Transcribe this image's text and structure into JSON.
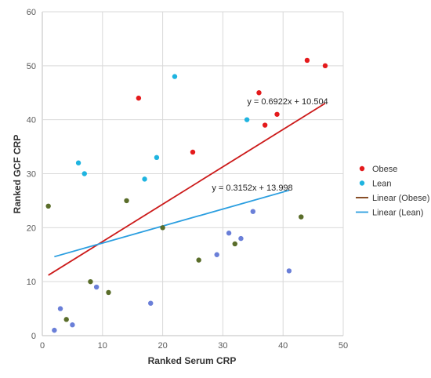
{
  "chart_data": {
    "type": "scatter",
    "title": "",
    "xlabel": "Ranked Serum CRP",
    "ylabel": "Ranked GCF CRP",
    "xlim": [
      0,
      50
    ],
    "ylim": [
      0,
      60
    ],
    "x_ticks": [
      "0",
      "10",
      "20",
      "30",
      "40",
      "50"
    ],
    "y_ticks": [
      "0",
      "10",
      "20",
      "30",
      "40",
      "50",
      "60"
    ],
    "grid": true,
    "legend_position": "right",
    "series": [
      {
        "name": "Obese",
        "color": "#e41a1c",
        "points": [
          [
            16,
            44
          ],
          [
            25,
            34
          ],
          [
            36,
            45
          ],
          [
            37,
            39
          ],
          [
            39,
            41
          ],
          [
            44,
            51
          ],
          [
            47,
            50
          ]
        ]
      },
      {
        "name": "Lean",
        "color": "#1fb4e0",
        "points": [
          [
            6,
            32
          ],
          [
            7,
            30
          ],
          [
            17,
            29
          ],
          [
            19,
            33
          ],
          [
            22,
            48
          ],
          [
            34,
            40
          ]
        ]
      },
      {
        "name": "",
        "color": "#5a6d2a",
        "points": [
          [
            1,
            24
          ],
          [
            4,
            3
          ],
          [
            8,
            10
          ],
          [
            11,
            8
          ],
          [
            14,
            25
          ],
          [
            20,
            20
          ],
          [
            26,
            14
          ],
          [
            32,
            17
          ],
          [
            43,
            22
          ]
        ]
      },
      {
        "name": "",
        "color": "#6a7fd8",
        "points": [
          [
            2,
            1
          ],
          [
            3,
            5
          ],
          [
            5,
            2
          ],
          [
            9,
            9
          ],
          [
            18,
            6
          ],
          [
            29,
            15
          ],
          [
            31,
            19
          ],
          [
            33,
            18
          ],
          [
            35,
            23
          ],
          [
            41,
            12
          ]
        ]
      }
    ],
    "trendlines": [
      {
        "name": "Linear (Obese)",
        "color": "#cc1a1a",
        "slope": 0.6922,
        "intercept": 10.504,
        "x_range": [
          1,
          47
        ],
        "equation": "y = 0.6922x + 10.504"
      },
      {
        "name": "Linear (Lean)",
        "color": "#2a9ee0",
        "slope": 0.3152,
        "intercept": 13.998,
        "x_range": [
          2,
          41
        ],
        "equation": "y = 0.3152x + 13.998"
      }
    ],
    "legend": [
      {
        "label": "Obese",
        "kind": "marker",
        "color": "#e41a1c"
      },
      {
        "label": "Lean",
        "kind": "marker",
        "color": "#1fb4e0"
      },
      {
        "label": "Linear (Obese)",
        "kind": "line",
        "color": "#7a3a10"
      },
      {
        "label": "Linear (Lean)",
        "kind": "line",
        "color": "#2a9ee0"
      }
    ]
  }
}
